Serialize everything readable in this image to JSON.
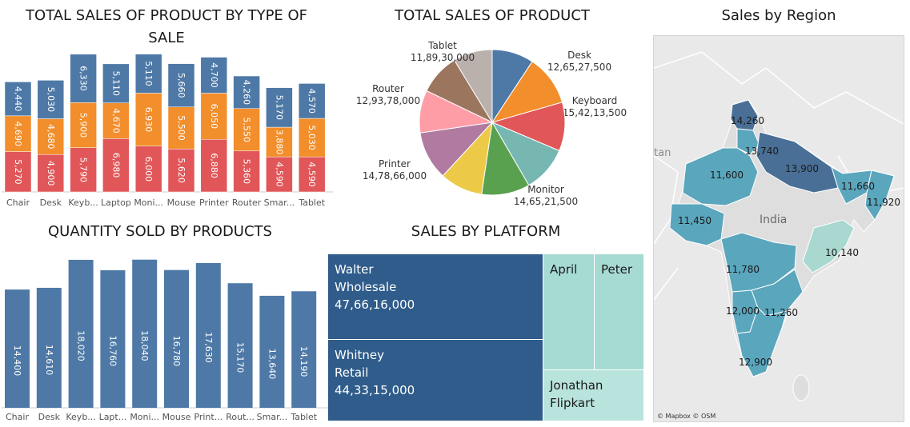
{
  "chart_data": [
    {
      "type": "bar",
      "stacked": true,
      "title": "TOTAL SALES OF PRODUCT BY TYPE OF SALE",
      "categories": [
        "Chair",
        "Desk",
        "Keyb...",
        "Laptop",
        "Moni...",
        "Mouse",
        "Printer",
        "Router",
        "Smar...",
        "Tablet"
      ],
      "series": [
        {
          "name": "",
          "color": "#e15759",
          "values": [
            5270,
            4900,
            5790,
            6980,
            6000,
            5620,
            6880,
            5360,
            4590,
            4590
          ]
        },
        {
          "name": "",
          "color": "#f28e2b",
          "values": [
            4690,
            4680,
            5900,
            4670,
            6930,
            5500,
            6050,
            5550,
            3880,
            5030
          ]
        },
        {
          "name": "",
          "color": "#4e79a7",
          "values": [
            4440,
            5030,
            6330,
            5110,
            5110,
            5660,
            4700,
            4260,
            5170,
            4570
          ]
        }
      ],
      "labels": [
        [
          "5,270",
          "4,900",
          "5,790",
          "6,980",
          "6,000",
          "5,620",
          "6,880",
          "5,360",
          "4,590",
          "4,590"
        ],
        [
          "4,690",
          "4,680",
          "5,900",
          "4,670",
          "6,930",
          "5,500",
          "6,050",
          "5,550",
          "3,880",
          "5,030"
        ],
        [
          "4,440",
          "5,030",
          "6,330",
          "5,110",
          "5,110",
          "5,660",
          "4,700",
          "4,260",
          "5,170",
          "4,570"
        ]
      ],
      "ylim": [
        0,
        18000
      ],
      "grid": false
    },
    {
      "type": "pie",
      "title": "TOTAL SALES OF PRODUCT",
      "slices": [
        {
          "label": "Desk",
          "value": 126527500,
          "value_label": "12,65,27,500",
          "color": "#4e79a7"
        },
        {
          "label": "Keyboard",
          "value": 154213500,
          "value_label": "15,42,13,500",
          "color": "#f28e2b"
        },
        {
          "label": "",
          "value": 148000000,
          "value_label": "",
          "color": "#e15759"
        },
        {
          "label": "",
          "value": 140000000,
          "value_label": "",
          "color": "#76b7b2"
        },
        {
          "label": "Monitor",
          "value": 146521500,
          "value_label": "14,65,21,500",
          "color": "#59a14f"
        },
        {
          "label": "",
          "value": 130000000,
          "value_label": "",
          "color": "#edc948"
        },
        {
          "label": "Printer",
          "value": 147866000,
          "value_label": "14,78,66,000",
          "color": "#b07aa1"
        },
        {
          "label": "Router",
          "value": 129378000,
          "value_label": "12,93,78,000",
          "color": "#ff9da7"
        },
        {
          "label": "",
          "value": 125000000,
          "value_label": "",
          "color": "#9c755f"
        },
        {
          "label": "Tablet",
          "value": 118930000,
          "value_label": "11,89,30,000",
          "color": "#bab0ac"
        }
      ]
    },
    {
      "type": "bar",
      "title": "QUANTITY SOLD BY PRODUCTS",
      "categories": [
        "Chair",
        "Desk",
        "Keyb...",
        "Lapt...",
        "Moni...",
        "Mouse",
        "Print...",
        "Rout...",
        "Smar...",
        "Tablet"
      ],
      "values": [
        14400,
        14610,
        18020,
        16760,
        18040,
        16780,
        17630,
        15170,
        13640,
        14190
      ],
      "value_labels": [
        "14,400",
        "14,610",
        "18,020",
        "16,760",
        "18,040",
        "16,780",
        "17,630",
        "15,170",
        "13,640",
        "14,190"
      ],
      "color": "#4e79a7",
      "ylim": [
        0,
        18500
      ],
      "grid": false
    },
    {
      "type": "treemap",
      "title": "SALES BY PLATFORM",
      "cells": [
        {
          "name": "Walter Wholesale",
          "line1": "Walter",
          "line2": "Wholesale",
          "value_label": "47,66,16,000",
          "color": "#2f5c8a",
          "text_color": "#ffffff"
        },
        {
          "name": "Whitney Retail",
          "line1": "Whitney",
          "line2": "Retail",
          "value_label": "44,33,15,000",
          "color": "#2f5c8a",
          "text_color": "#ffffff"
        },
        {
          "name": "April",
          "line1": "April",
          "line2": "",
          "value_label": "",
          "color": "#a6dbd4",
          "text_color": "#1a1a1a"
        },
        {
          "name": "Peter",
          "line1": "Peter",
          "line2": "",
          "value_label": "",
          "color": "#a6dbd4",
          "text_color": "#1a1a1a"
        },
        {
          "name": "Jonathan Flipkart",
          "line1": "Jonathan",
          "line2": "Flipkart",
          "value_label": "",
          "color": "#b9e4dd",
          "text_color": "#1a1a1a"
        }
      ]
    }
  ],
  "map": {
    "title": "Sales by Region",
    "country_label": "India",
    "neighbor_label": "tan",
    "attribution": "© Mapbox © OSM",
    "regions": [
      {
        "label": "14,260"
      },
      {
        "label": "13,740"
      },
      {
        "label": "13,900"
      },
      {
        "label": "11,600"
      },
      {
        "label": "11,660"
      },
      {
        "label": "11,920"
      },
      {
        "label": "11,450"
      },
      {
        "label": "10,140"
      },
      {
        "label": "11,780"
      },
      {
        "label": "12,000"
      },
      {
        "label": "11,260"
      },
      {
        "label": "12,900"
      }
    ]
  },
  "colors": {
    "map_land": "#e9e9e9",
    "map_border": "#ffffff",
    "region_dark": "#4a6f96",
    "region_mid": "#5aa6bd",
    "region_light": "#a8d8cf",
    "india_grey": "#dedede"
  }
}
